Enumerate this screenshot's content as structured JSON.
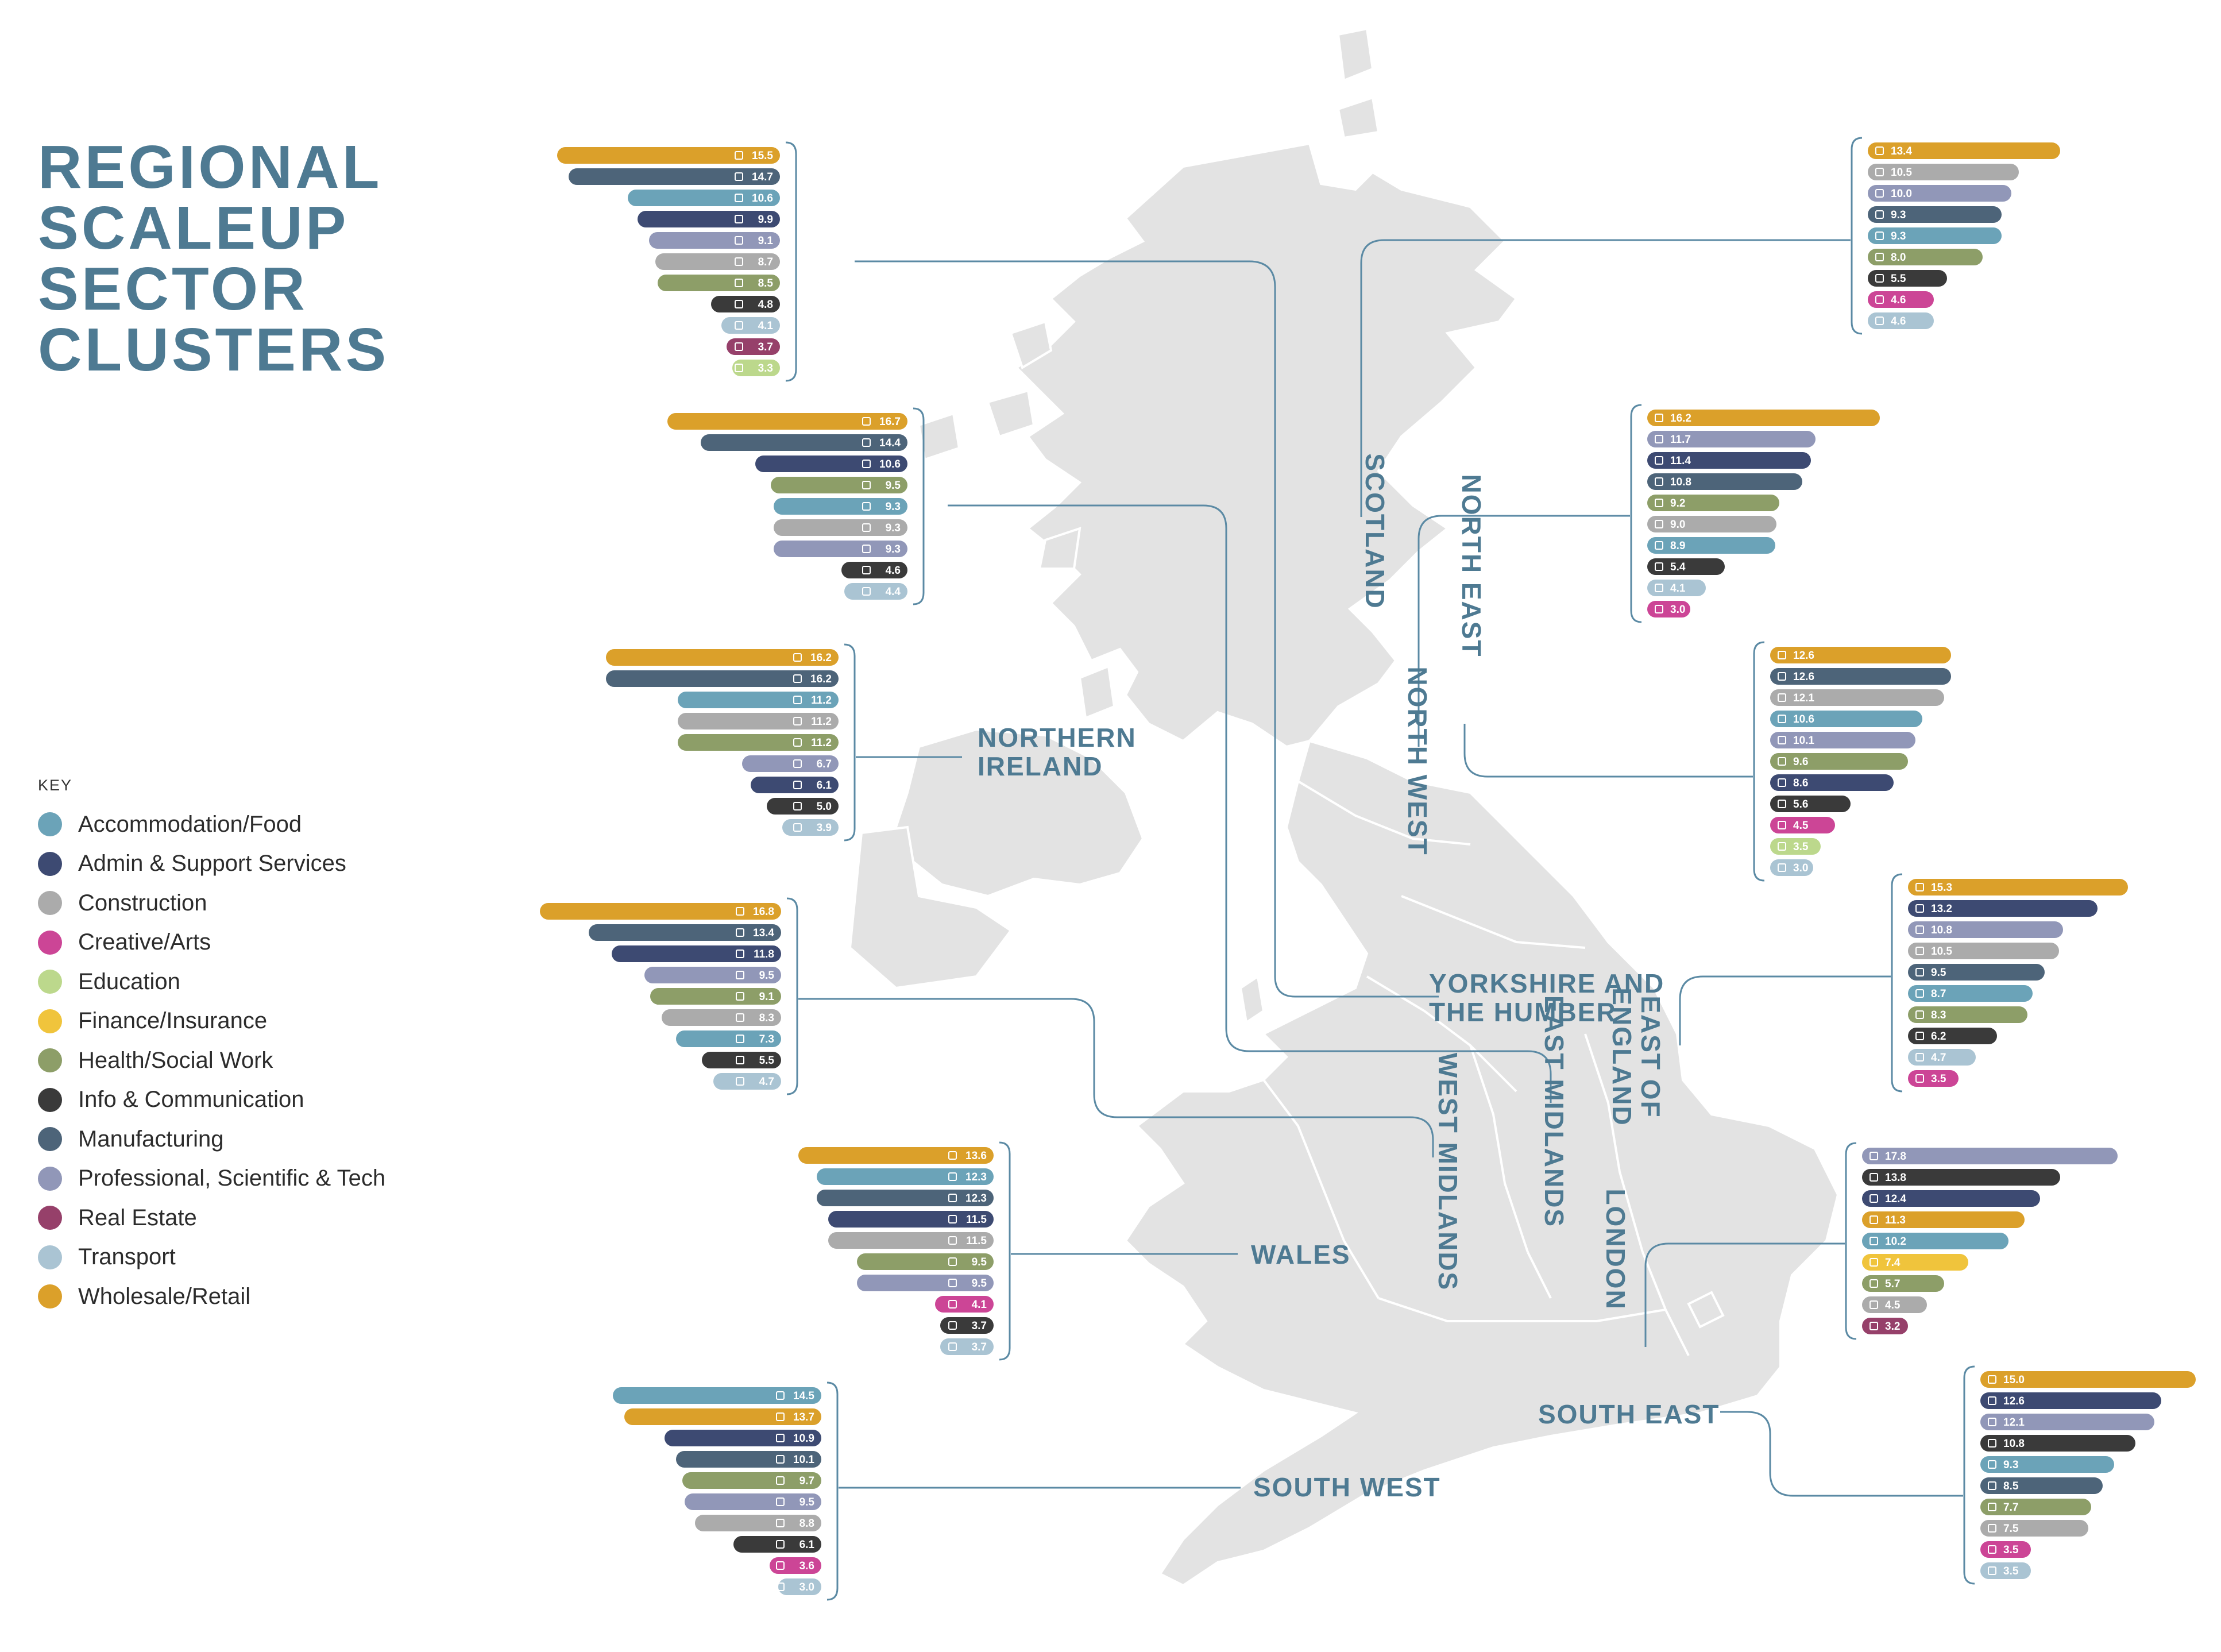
{
  "title_lines": [
    "REGIONAL",
    "SCALEUP",
    "SECTOR",
    "CLUSTERS"
  ],
  "key": {
    "heading": "KEY",
    "items": [
      {
        "sector": "accommodation",
        "label": "Accommodation/Food",
        "color": "#6ba3b8",
        "icon": "accommodation-icon"
      },
      {
        "sector": "admin",
        "label": "Admin & Support Services",
        "color": "#3d4a72",
        "icon": "admin-icon"
      },
      {
        "sector": "construction",
        "label": "Construction",
        "color": "#ababab",
        "icon": "construction-icon"
      },
      {
        "sector": "creative",
        "label": "Creative/Arts",
        "color": "#cc4596",
        "icon": "creative-icon"
      },
      {
        "sector": "education",
        "label": "Education",
        "color": "#bcd88c",
        "icon": "education-icon"
      },
      {
        "sector": "finance",
        "label": "Finance/Insurance",
        "color": "#f0c43c",
        "icon": "finance-icon"
      },
      {
        "sector": "health",
        "label": "Health/Social Work",
        "color": "#8d9e68",
        "icon": "health-icon"
      },
      {
        "sector": "info",
        "label": "Info & Communication",
        "color": "#3a3a3a",
        "icon": "info-icon"
      },
      {
        "sector": "manufacturing",
        "label": "Manufacturing",
        "color": "#4d6479",
        "icon": "manufacturing-icon"
      },
      {
        "sector": "professional",
        "label": "Professional, Scientific & Tech",
        "color": "#9197b8",
        "icon": "professional-icon"
      },
      {
        "sector": "realestate",
        "label": "Real Estate",
        "color": "#96406a",
        "icon": "real-estate-icon"
      },
      {
        "sector": "transport",
        "label": "Transport",
        "color": "#aac4d3",
        "icon": "transport-icon"
      },
      {
        "sector": "wholesale",
        "label": "Wholesale/Retail",
        "color": "#dba02a",
        "icon": "wholesale-icon"
      }
    ]
  },
  "chart_data": {
    "type": "bar",
    "units": "",
    "regions": [
      {
        "name": "SCOTLAND",
        "bars": [
          {
            "sector": "wholesale",
            "value": 15.5
          },
          {
            "sector": "manufacturing",
            "value": 14.7
          },
          {
            "sector": "accommodation",
            "value": 10.6
          },
          {
            "sector": "admin",
            "value": 9.9
          },
          {
            "sector": "professional",
            "value": 9.1
          },
          {
            "sector": "construction",
            "value": 8.7
          },
          {
            "sector": "health",
            "value": 8.5
          },
          {
            "sector": "info",
            "value": 4.8
          },
          {
            "sector": "transport",
            "value": 4.1
          },
          {
            "sector": "realestate",
            "value": 3.7
          },
          {
            "sector": "education",
            "value": 3.3
          }
        ]
      },
      {
        "name": "NORTH WEST",
        "bars": [
          {
            "sector": "wholesale",
            "value": 16.7
          },
          {
            "sector": "manufacturing",
            "value": 14.4
          },
          {
            "sector": "admin",
            "value": 10.6
          },
          {
            "sector": "health",
            "value": 9.5
          },
          {
            "sector": "accommodation",
            "value": 9.3
          },
          {
            "sector": "construction",
            "value": 9.3
          },
          {
            "sector": "professional",
            "value": 9.3
          },
          {
            "sector": "info",
            "value": 4.6
          },
          {
            "sector": "transport",
            "value": 4.4
          }
        ]
      },
      {
        "name": "NORTHERN IRELAND",
        "bars": [
          {
            "sector": "wholesale",
            "value": 16.2
          },
          {
            "sector": "manufacturing",
            "value": 16.2
          },
          {
            "sector": "accommodation",
            "value": 11.2
          },
          {
            "sector": "construction",
            "value": 11.2
          },
          {
            "sector": "health",
            "value": 11.2
          },
          {
            "sector": "professional",
            "value": 6.7
          },
          {
            "sector": "admin",
            "value": 6.1
          },
          {
            "sector": "info",
            "value": 5.0
          },
          {
            "sector": "transport",
            "value": 3.9
          }
        ]
      },
      {
        "name": "WEST MIDLANDS",
        "bars": [
          {
            "sector": "wholesale",
            "value": 16.8
          },
          {
            "sector": "manufacturing",
            "value": 13.4
          },
          {
            "sector": "admin",
            "value": 11.8
          },
          {
            "sector": "professional",
            "value": 9.5
          },
          {
            "sector": "health",
            "value": 9.1
          },
          {
            "sector": "construction",
            "value": 8.3
          },
          {
            "sector": "accommodation",
            "value": 7.3
          },
          {
            "sector": "info",
            "value": 5.5
          },
          {
            "sector": "transport",
            "value": 4.7
          }
        ]
      },
      {
        "name": "WALES",
        "bars": [
          {
            "sector": "wholesale",
            "value": 13.6
          },
          {
            "sector": "accommodation",
            "value": 12.3
          },
          {
            "sector": "manufacturing",
            "value": 12.3
          },
          {
            "sector": "admin",
            "value": 11.5
          },
          {
            "sector": "construction",
            "value": 11.5
          },
          {
            "sector": "health",
            "value": 9.5
          },
          {
            "sector": "professional",
            "value": 9.5
          },
          {
            "sector": "creative",
            "value": 4.1
          },
          {
            "sector": "info",
            "value": 3.7
          },
          {
            "sector": "transport",
            "value": 3.7
          }
        ]
      },
      {
        "name": "SOUTH WEST",
        "bars": [
          {
            "sector": "accommodation",
            "value": 14.5
          },
          {
            "sector": "wholesale",
            "value": 13.7
          },
          {
            "sector": "admin",
            "value": 10.9
          },
          {
            "sector": "manufacturing",
            "value": 10.1
          },
          {
            "sector": "health",
            "value": 9.7
          },
          {
            "sector": "professional",
            "value": 9.5
          },
          {
            "sector": "construction",
            "value": 8.8
          },
          {
            "sector": "info",
            "value": 6.1
          },
          {
            "sector": "creative",
            "value": 3.6
          },
          {
            "sector": "transport",
            "value": 3.0
          }
        ]
      },
      {
        "name": "NORTH EAST",
        "bars": [
          {
            "sector": "wholesale",
            "value": 13.4
          },
          {
            "sector": "construction",
            "value": 10.5
          },
          {
            "sector": "professional",
            "value": 10.0
          },
          {
            "sector": "manufacturing",
            "value": 9.3
          },
          {
            "sector": "accommodation",
            "value": 9.3
          },
          {
            "sector": "health",
            "value": 8.0
          },
          {
            "sector": "info",
            "value": 5.5
          },
          {
            "sector": "creative",
            "value": 4.6
          },
          {
            "sector": "transport",
            "value": 4.6
          }
        ]
      },
      {
        "name": "YORKSHIRE AND THE HUMBER",
        "bars": [
          {
            "sector": "wholesale",
            "value": 16.2
          },
          {
            "sector": "professional",
            "value": 11.7
          },
          {
            "sector": "admin",
            "value": 11.4
          },
          {
            "sector": "manufacturing",
            "value": 10.8
          },
          {
            "sector": "health",
            "value": 9.2
          },
          {
            "sector": "construction",
            "value": 9.0
          },
          {
            "sector": "accommodation",
            "value": 8.9
          },
          {
            "sector": "info",
            "value": 5.4
          },
          {
            "sector": "transport",
            "value": 4.1
          },
          {
            "sector": "creative",
            "value": 3.0
          }
        ]
      },
      {
        "name": "EAST MIDLANDS",
        "bars": [
          {
            "sector": "wholesale",
            "value": 12.6
          },
          {
            "sector": "manufacturing",
            "value": 12.6
          },
          {
            "sector": "construction",
            "value": 12.1
          },
          {
            "sector": "accommodation",
            "value": 10.6
          },
          {
            "sector": "professional",
            "value": 10.1
          },
          {
            "sector": "health",
            "value": 9.6
          },
          {
            "sector": "admin",
            "value": 8.6
          },
          {
            "sector": "info",
            "value": 5.6
          },
          {
            "sector": "creative",
            "value": 4.5
          },
          {
            "sector": "education",
            "value": 3.5
          },
          {
            "sector": "transport",
            "value": 3.0
          }
        ]
      },
      {
        "name": "EAST OF ENGLAND",
        "bars": [
          {
            "sector": "wholesale",
            "value": 15.3
          },
          {
            "sector": "admin",
            "value": 13.2
          },
          {
            "sector": "professional",
            "value": 10.8
          },
          {
            "sector": "construction",
            "value": 10.5
          },
          {
            "sector": "manufacturing",
            "value": 9.5
          },
          {
            "sector": "accommodation",
            "value": 8.7
          },
          {
            "sector": "health",
            "value": 8.3
          },
          {
            "sector": "info",
            "value": 6.2
          },
          {
            "sector": "transport",
            "value": 4.7
          },
          {
            "sector": "creative",
            "value": 3.5
          }
        ]
      },
      {
        "name": "LONDON",
        "bars": [
          {
            "sector": "professional",
            "value": 17.8
          },
          {
            "sector": "info",
            "value": 13.8
          },
          {
            "sector": "admin",
            "value": 12.4
          },
          {
            "sector": "wholesale",
            "value": 11.3
          },
          {
            "sector": "accommodation",
            "value": 10.2
          },
          {
            "sector": "finance",
            "value": 7.4
          },
          {
            "sector": "health",
            "value": 5.7
          },
          {
            "sector": "construction",
            "value": 4.5
          },
          {
            "sector": "realestate",
            "value": 3.2
          }
        ]
      },
      {
        "name": "SOUTH EAST",
        "bars": [
          {
            "sector": "wholesale",
            "value": 15.0
          },
          {
            "sector": "admin",
            "value": 12.6
          },
          {
            "sector": "professional",
            "value": 12.1
          },
          {
            "sector": "info",
            "value": 10.8
          },
          {
            "sector": "accommodation",
            "value": 9.3
          },
          {
            "sector": "manufacturing",
            "value": 8.5
          },
          {
            "sector": "health",
            "value": 7.7
          },
          {
            "sector": "construction",
            "value": 7.5
          },
          {
            "sector": "creative",
            "value": 3.5
          },
          {
            "sector": "transport",
            "value": 3.5
          }
        ]
      }
    ]
  }
}
